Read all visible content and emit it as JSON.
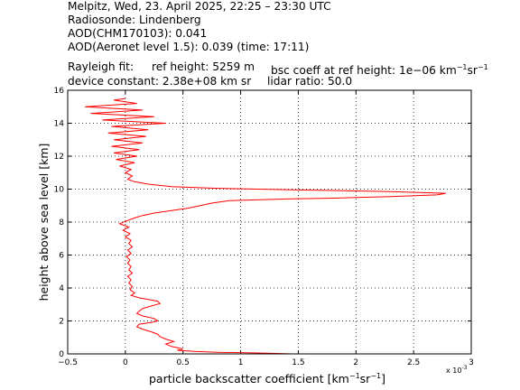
{
  "header": {
    "line1": "Melpitz, Wed, 23. April 2025, 22:25 – 23:30 UTC",
    "line2": "Radiosonde: Lindenberg",
    "line3": "AOD(CHM170103): 0.041",
    "line4": "AOD(Aeronet level 1.5): 0.039   (time: 17:11)",
    "rayleigh_label": "Rayleigh fit:",
    "ref_height": "ref height: 5259 m",
    "bsc_prefix": "bsc coeff at ref height: 1e−06 km",
    "bsc_exp1": "−1",
    "bsc_mid": "sr",
    "bsc_exp2": "−1",
    "device_constant": "device constant: 2.38e+08 km sr",
    "lidar_ratio": "lidar ratio: 50.0"
  },
  "chart_data": {
    "type": "line",
    "xlabel_prefix": "particle backscatter coefficient [km",
    "xlabel_exp1": "−1",
    "xlabel_mid": "sr",
    "xlabel_exp2": "−1",
    "xlabel_suffix": "]",
    "ylabel": "height above sea level [km]",
    "x_multiplier_label": "x 10",
    "x_multiplier_exp": "-3",
    "xlim": [
      -0.5,
      3
    ],
    "ylim": [
      0,
      16
    ],
    "xticks": [
      -0.5,
      0,
      0.5,
      1,
      1.5,
      2,
      2.5,
      3
    ],
    "xtick_labels": [
      "−0.5",
      "0",
      "0.5",
      "1",
      "1.5",
      "2",
      "2.5",
      "3"
    ],
    "yticks": [
      0,
      2,
      4,
      6,
      8,
      10,
      12,
      14,
      16
    ],
    "ytick_labels": [
      "0",
      "2",
      "4",
      "6",
      "8",
      "10",
      "12",
      "14",
      "16"
    ],
    "grid": true,
    "series": [
      {
        "color": "#ff0000",
        "x_units_note": "values in 1e-3 km-1 sr-1",
        "points": [
          [
            1.45,
            0.0
          ],
          [
            1.2,
            0.05
          ],
          [
            0.8,
            0.1
          ],
          [
            0.6,
            0.15
          ],
          [
            0.45,
            0.22
          ],
          [
            0.5,
            0.3
          ],
          [
            0.4,
            0.45
          ],
          [
            0.35,
            0.6
          ],
          [
            0.42,
            0.75
          ],
          [
            0.35,
            0.9
          ],
          [
            0.3,
            1.05
          ],
          [
            0.28,
            1.2
          ],
          [
            0.22,
            1.35
          ],
          [
            0.15,
            1.5
          ],
          [
            0.1,
            1.65
          ],
          [
            0.12,
            1.8
          ],
          [
            0.22,
            1.9
          ],
          [
            0.28,
            2.0
          ],
          [
            0.25,
            2.15
          ],
          [
            0.15,
            2.3
          ],
          [
            0.1,
            2.45
          ],
          [
            0.12,
            2.6
          ],
          [
            0.15,
            2.75
          ],
          [
            0.22,
            2.9
          ],
          [
            0.3,
            3.05
          ],
          [
            0.28,
            3.2
          ],
          [
            0.2,
            3.3
          ],
          [
            0.12,
            3.4
          ],
          [
            0.05,
            3.55
          ],
          [
            0.08,
            3.7
          ],
          [
            0.04,
            3.9
          ],
          [
            0.06,
            4.1
          ],
          [
            0.03,
            4.3
          ],
          [
            0.05,
            4.5
          ],
          [
            0.02,
            4.7
          ],
          [
            0.06,
            4.9
          ],
          [
            0.03,
            5.1
          ],
          [
            0.05,
            5.3
          ],
          [
            0.02,
            5.5
          ],
          [
            0.04,
            5.7
          ],
          [
            0.01,
            5.9
          ],
          [
            0.05,
            6.1
          ],
          [
            0.02,
            6.3
          ],
          [
            0.06,
            6.5
          ],
          [
            0.03,
            6.7
          ],
          [
            0.05,
            6.9
          ],
          [
            0.0,
            7.1
          ],
          [
            0.04,
            7.3
          ],
          [
            -0.02,
            7.5
          ],
          [
            0.03,
            7.7
          ],
          [
            -0.05,
            7.9
          ],
          [
            0.02,
            8.1
          ],
          [
            0.08,
            8.25
          ],
          [
            0.15,
            8.4
          ],
          [
            0.25,
            8.55
          ],
          [
            0.4,
            8.7
          ],
          [
            0.55,
            8.85
          ],
          [
            0.65,
            9.0
          ],
          [
            0.75,
            9.15
          ],
          [
            0.9,
            9.3
          ],
          [
            1.4,
            9.4
          ],
          [
            1.8,
            9.45
          ],
          [
            2.3,
            9.55
          ],
          [
            2.7,
            9.65
          ],
          [
            2.78,
            9.75
          ],
          [
            2.3,
            9.85
          ],
          [
            1.5,
            9.95
          ],
          [
            0.8,
            10.05
          ],
          [
            0.4,
            10.15
          ],
          [
            0.2,
            10.3
          ],
          [
            0.08,
            10.45
          ],
          [
            0.02,
            10.6
          ],
          [
            0.06,
            10.8
          ],
          [
            0.0,
            11.0
          ],
          [
            0.05,
            11.2
          ],
          [
            -0.05,
            11.4
          ],
          [
            0.08,
            11.6
          ],
          [
            -0.08,
            11.8
          ],
          [
            0.1,
            12.0
          ],
          [
            -0.1,
            12.2
          ],
          [
            0.12,
            12.4
          ],
          [
            -0.12,
            12.6
          ],
          [
            0.15,
            12.8
          ],
          [
            -0.1,
            13.0
          ],
          [
            0.18,
            13.2
          ],
          [
            -0.15,
            13.4
          ],
          [
            0.2,
            13.6
          ],
          [
            -0.12,
            13.8
          ],
          [
            0.35,
            14.0
          ],
          [
            -0.2,
            14.2
          ],
          [
            0.25,
            14.4
          ],
          [
            -0.3,
            14.6
          ],
          [
            0.15,
            14.8
          ],
          [
            -0.35,
            15.0
          ],
          [
            0.1,
            15.2
          ],
          [
            -0.1,
            15.4
          ],
          [
            0.0,
            15.5
          ]
        ]
      }
    ]
  }
}
